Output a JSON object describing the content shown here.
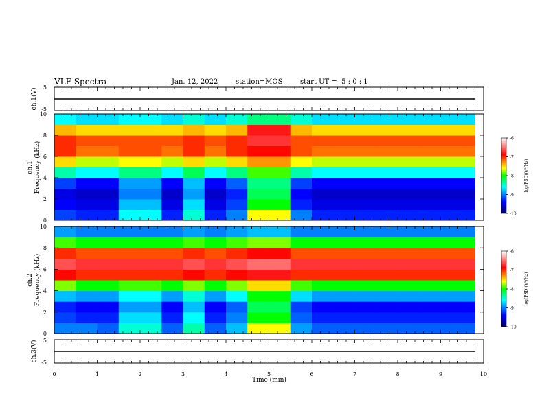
{
  "header": {
    "title": "VLF Spectra",
    "date": "Jan. 12, 2022",
    "station": "station=MOS",
    "start_ut": "start UT =  5 : 0 : 1"
  },
  "panels": {
    "ch1_voltage": {
      "label": "ch.1(V)",
      "ylim": [
        -5,
        5
      ],
      "ticks": [
        "5",
        "-5"
      ]
    },
    "ch1_spec": {
      "label1": "ch.1",
      "label2": "Frequency (kHz)",
      "ylim": [
        0,
        10
      ],
      "ticks": [
        "0",
        "2",
        "4",
        "6",
        "8",
        "10"
      ]
    },
    "ch2_spec": {
      "label1": "ch.2",
      "label2": "Frequency (kHz)",
      "ylim": [
        0,
        10
      ],
      "ticks": [
        "0",
        "2",
        "4",
        "6",
        "8",
        "10"
      ]
    },
    "ch3_voltage": {
      "label": "ch.3(V)",
      "ylim": [
        -5,
        5
      ],
      "ticks": [
        "5",
        "-5"
      ]
    }
  },
  "xaxis": {
    "label": "Time (min)",
    "ticks": [
      "0",
      "1",
      "2",
      "3",
      "4",
      "5",
      "6",
      "7",
      "8",
      "9",
      "10"
    ],
    "xlim": [
      0,
      10
    ]
  },
  "colorbar": {
    "label": "log(PSD)(V²/Hz)",
    "ticks": [
      "-6",
      "-7",
      "-8",
      "-9",
      "-10"
    ],
    "range": [
      -10,
      -6
    ],
    "colors": [
      "#000060",
      "#0000ff",
      "#00ffff",
      "#00ff00",
      "#ffff00",
      "#ff0000",
      "#ffffff"
    ]
  },
  "chart_data": [
    {
      "type": "line",
      "title": "VLF Spectra",
      "ylabel": "ch.1(V)",
      "xlabel": "Time (min)",
      "xlim": [
        0,
        10
      ],
      "ylim": [
        -5,
        5
      ],
      "series": [
        {
          "x": [
            0,
            9.8
          ],
          "y": [
            0,
            0
          ]
        }
      ]
    },
    {
      "type": "heatmap",
      "ylabel": "Frequency (kHz)",
      "xlabel": "Time (min)",
      "xlim": [
        0,
        10
      ],
      "ylim": [
        0,
        10
      ],
      "colorbar_label": "log(PSD)(V²/Hz)",
      "colorbar_range": [
        -10,
        -6
      ],
      "time_min": [
        0,
        0.5,
        1,
        1.5,
        2,
        2.5,
        3,
        3.5,
        4,
        4.5,
        5,
        5.5,
        6,
        6.5,
        7,
        7.5,
        8,
        8.5,
        9,
        9.5
      ],
      "freq_khz": [
        0.5,
        1.5,
        2.5,
        3.5,
        4.5,
        5.5,
        6.5,
        7.5,
        8.5,
        9.5
      ],
      "z": [
        [
          -9.2,
          -9.3,
          -9.3,
          -8.6,
          -8.6,
          -9.3,
          -8.5,
          -9.3,
          -9.0,
          -7.6,
          -7.6,
          -9.0,
          -9.3,
          -9.3,
          -9.3,
          -9.3,
          -9.3,
          -9.3,
          -9.3,
          -9.3
        ],
        [
          -9.4,
          -9.5,
          -9.5,
          -8.8,
          -8.8,
          -9.5,
          -8.7,
          -9.5,
          -9.2,
          -8.0,
          -8.0,
          -9.3,
          -9.5,
          -9.5,
          -9.5,
          -9.5,
          -9.5,
          -9.5,
          -9.5,
          -9.5
        ],
        [
          -9.5,
          -9.6,
          -9.6,
          -9.0,
          -9.0,
          -9.6,
          -8.9,
          -9.6,
          -9.3,
          -8.2,
          -8.2,
          -9.4,
          -9.6,
          -9.6,
          -9.6,
          -9.6,
          -9.6,
          -9.6,
          -9.6,
          -9.6
        ],
        [
          -9.2,
          -9.4,
          -9.4,
          -8.9,
          -8.9,
          -9.4,
          -8.8,
          -9.4,
          -9.1,
          -8.3,
          -8.3,
          -9.2,
          -9.4,
          -9.4,
          -9.4,
          -9.4,
          -9.4,
          -9.4,
          -9.4,
          -9.4
        ],
        [
          -8.4,
          -8.6,
          -8.6,
          -8.3,
          -8.3,
          -8.6,
          -8.2,
          -8.6,
          -8.3,
          -7.9,
          -7.9,
          -8.4,
          -8.6,
          -8.6,
          -8.6,
          -8.6,
          -8.6,
          -8.6,
          -8.6,
          -8.6
        ],
        [
          -7.5,
          -7.7,
          -7.7,
          -7.6,
          -7.6,
          -7.7,
          -7.5,
          -7.7,
          -7.5,
          -7.3,
          -7.3,
          -7.6,
          -7.7,
          -7.7,
          -7.7,
          -7.7,
          -7.7,
          -7.7,
          -7.7,
          -7.7
        ],
        [
          -7.0,
          -7.2,
          -7.2,
          -7.1,
          -7.1,
          -7.2,
          -7.0,
          -7.2,
          -7.0,
          -6.9,
          -6.9,
          -7.1,
          -7.2,
          -7.2,
          -7.2,
          -7.2,
          -7.2,
          -7.2,
          -7.2,
          -7.2
        ],
        [
          -7.0,
          -7.1,
          -7.1,
          -7.1,
          -7.1,
          -7.1,
          -7.0,
          -7.1,
          -7.0,
          -6.7,
          -6.7,
          -7.1,
          -7.1,
          -7.1,
          -7.1,
          -7.1,
          -7.1,
          -7.1,
          -7.1,
          -7.1
        ],
        [
          -7.4,
          -7.5,
          -7.5,
          -7.5,
          -7.5,
          -7.5,
          -7.4,
          -7.5,
          -7.4,
          -6.8,
          -6.8,
          -7.4,
          -7.5,
          -7.5,
          -7.5,
          -7.5,
          -7.5,
          -7.5,
          -7.5,
          -7.5
        ],
        [
          -8.6,
          -8.7,
          -8.7,
          -8.6,
          -8.6,
          -8.7,
          -8.5,
          -8.7,
          -8.5,
          -8.3,
          -8.3,
          -8.5,
          -8.7,
          -8.7,
          -8.7,
          -8.7,
          -8.7,
          -8.7,
          -8.7,
          -8.7
        ]
      ]
    },
    {
      "type": "heatmap",
      "ylabel": "Frequency (kHz)",
      "xlabel": "Time (min)",
      "xlim": [
        0,
        10
      ],
      "ylim": [
        0,
        10
      ],
      "colorbar_label": "log(PSD)(V²/Hz)",
      "colorbar_range": [
        -10,
        -6
      ],
      "time_min": [
        0,
        0.5,
        1,
        1.5,
        2,
        2.5,
        3,
        3.5,
        4,
        4.5,
        5,
        5.5,
        6,
        6.5,
        7,
        7.5,
        8,
        8.5,
        9,
        9.5
      ],
      "freq_khz": [
        0.5,
        1.5,
        2.5,
        3.5,
        4.5,
        5.5,
        6.5,
        7.5,
        8.5,
        9.5
      ],
      "z": [
        [
          -9.0,
          -9.0,
          -9.1,
          -8.5,
          -8.5,
          -9.1,
          -8.4,
          -9.1,
          -8.8,
          -7.6,
          -7.6,
          -8.9,
          -9.1,
          -9.1,
          -9.1,
          -9.1,
          -9.1,
          -9.1,
          -9.1,
          -9.1
        ],
        [
          -9.2,
          -9.3,
          -9.3,
          -8.7,
          -8.7,
          -9.3,
          -8.6,
          -9.3,
          -9.0,
          -8.0,
          -8.0,
          -9.1,
          -9.3,
          -9.3,
          -9.3,
          -9.3,
          -9.3,
          -9.3,
          -9.3,
          -9.3
        ],
        [
          -9.3,
          -9.4,
          -9.4,
          -8.9,
          -8.9,
          -9.4,
          -8.8,
          -9.4,
          -9.1,
          -8.2,
          -8.2,
          -9.2,
          -9.4,
          -9.4,
          -9.4,
          -9.4,
          -9.4,
          -9.4,
          -9.4,
          -9.4
        ],
        [
          -8.8,
          -8.9,
          -8.9,
          -8.6,
          -8.6,
          -8.9,
          -8.5,
          -8.9,
          -8.6,
          -8.0,
          -8.0,
          -8.7,
          -8.9,
          -8.9,
          -8.9,
          -8.9,
          -8.9,
          -8.9,
          -8.9,
          -8.9
        ],
        [
          -7.8,
          -8.0,
          -8.0,
          -7.9,
          -7.9,
          -8.0,
          -7.8,
          -8.0,
          -7.8,
          -7.5,
          -7.5,
          -7.9,
          -8.0,
          -8.0,
          -8.0,
          -8.0,
          -8.0,
          -8.0,
          -8.0,
          -8.0
        ],
        [
          -6.9,
          -7.0,
          -7.0,
          -7.0,
          -7.0,
          -7.0,
          -6.9,
          -7.0,
          -6.9,
          -6.8,
          -6.8,
          -7.0,
          -7.0,
          -7.0,
          -7.0,
          -7.0,
          -7.0,
          -7.0,
          -7.0,
          -7.0
        ],
        [
          -6.6,
          -6.7,
          -6.7,
          -6.7,
          -6.7,
          -6.7,
          -6.6,
          -6.7,
          -6.6,
          -6.5,
          -6.5,
          -6.7,
          -6.7,
          -6.7,
          -6.7,
          -6.7,
          -6.7,
          -6.7,
          -6.7,
          -6.7
        ],
        [
          -7.0,
          -7.1,
          -7.1,
          -7.1,
          -7.1,
          -7.1,
          -7.0,
          -7.1,
          -7.0,
          -6.9,
          -6.9,
          -7.1,
          -7.1,
          -7.1,
          -7.1,
          -7.1,
          -7.1,
          -7.1,
          -7.1,
          -7.1
        ],
        [
          -7.9,
          -8.0,
          -8.0,
          -8.0,
          -8.0,
          -8.0,
          -7.9,
          -8.0,
          -7.9,
          -7.8,
          -7.8,
          -8.0,
          -8.0,
          -8.0,
          -8.0,
          -8.0,
          -8.0,
          -8.0,
          -8.0,
          -8.0
        ],
        [
          -8.9,
          -9.0,
          -9.0,
          -9.0,
          -9.0,
          -9.0,
          -8.9,
          -9.0,
          -8.9,
          -8.8,
          -8.8,
          -9.0,
          -9.0,
          -9.0,
          -9.0,
          -9.0,
          -9.0,
          -9.0,
          -9.0,
          -9.0
        ]
      ]
    },
    {
      "type": "line",
      "ylabel": "ch.3(V)",
      "xlabel": "Time (min)",
      "xlim": [
        0,
        10
      ],
      "ylim": [
        -5,
        5
      ],
      "series": [
        {
          "x": [
            0,
            9.8
          ],
          "y": [
            0,
            0
          ]
        }
      ]
    }
  ]
}
